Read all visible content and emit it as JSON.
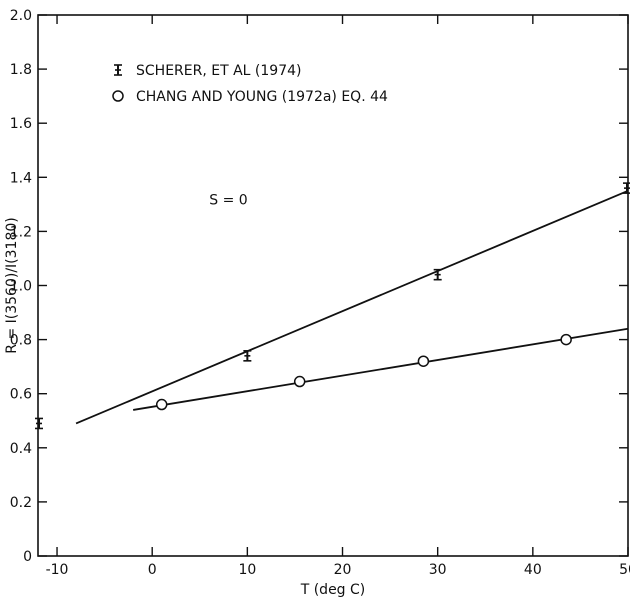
{
  "chart_data": {
    "type": "scatter",
    "title": "",
    "xlabel": "T (deg C)",
    "ylabel": "R = I(3560)/I(3180)",
    "xlim": [
      -12,
      50
    ],
    "ylim": [
      0,
      2.0
    ],
    "x_ticks": [
      -10,
      0,
      10,
      20,
      30,
      40,
      50
    ],
    "x_tick_labels": [
      "-10",
      "0",
      "10",
      "20",
      "30",
      "40",
      "50"
    ],
    "y_ticks": [
      0,
      0.2,
      0.4,
      0.6,
      0.8,
      1.0,
      1.2,
      1.4,
      1.6,
      1.8,
      2.0
    ],
    "y_tick_labels": [
      "0",
      "0.2",
      "0.4",
      "0.6",
      "0.8",
      "1.0",
      "1.2",
      "1.4",
      "1.6",
      "1.8",
      "2.0"
    ],
    "grid": false,
    "legend_position": "top-left",
    "annotations": [
      {
        "text": "S = 0",
        "x": 6,
        "y": 1.3
      }
    ],
    "series": [
      {
        "name": "SCHERER, ET AL (1974)",
        "marker": "error-bar",
        "points": [
          {
            "x": -12,
            "y": 0.49
          },
          {
            "x": 10,
            "y": 0.74
          },
          {
            "x": 30,
            "y": 1.04
          },
          {
            "x": 50,
            "y": 1.36
          }
        ],
        "fit_line": [
          {
            "x": -8,
            "y": 0.49
          },
          {
            "x": 50,
            "y": 1.35
          }
        ]
      },
      {
        "name": "CHANG AND YOUNG (1972a) EQ. 44",
        "marker": "open-circle",
        "points": [
          {
            "x": 1,
            "y": 0.56
          },
          {
            "x": 15.5,
            "y": 0.645
          },
          {
            "x": 28.5,
            "y": 0.72
          },
          {
            "x": 43.5,
            "y": 0.8
          }
        ],
        "fit_line": [
          {
            "x": -2,
            "y": 0.54
          },
          {
            "x": 50,
            "y": 0.84
          }
        ]
      }
    ]
  }
}
